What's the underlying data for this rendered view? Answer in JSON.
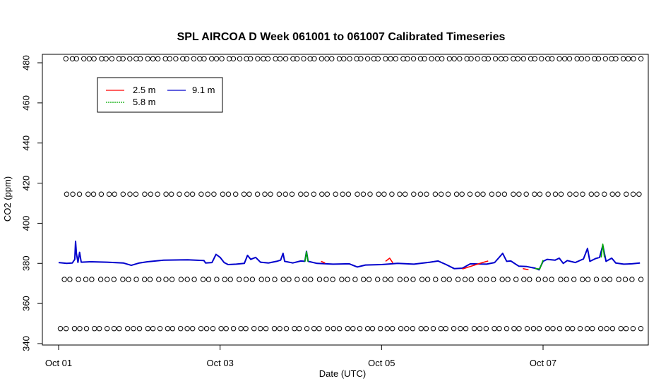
{
  "chart_data": {
    "type": "line",
    "title": "SPL AIRCOA D  Week 061001 to 061007  Calibrated Timeseries",
    "xlabel": "Date (UTC)",
    "ylabel": "CO2 (ppm)",
    "x_unit": "days",
    "xlim": [
      0.0,
      7.3
    ],
    "ylim": [
      339,
      486
    ],
    "x_tick_labels": [
      {
        "x": 0,
        "label": "Oct 01"
      },
      {
        "x": 2,
        "label": "Oct 03"
      },
      {
        "x": 4,
        "label": "Oct 05"
      },
      {
        "x": 6,
        "label": "Oct 07"
      }
    ],
    "y_ticks": [
      340,
      360,
      380,
      400,
      420,
      440,
      460,
      480
    ],
    "grid": false,
    "legend": {
      "placement": "top-left",
      "entries": [
        {
          "name": "2.5 m",
          "color": "#ff0000"
        },
        {
          "name": "5.8 m",
          "color": "#00aa00"
        },
        {
          "name": "9.1 m",
          "color": "#0000cc"
        }
      ]
    },
    "series": [
      {
        "name": "9.1 m",
        "color": "#0000cc",
        "points": [
          [
            0.0,
            380.4
          ],
          [
            0.1,
            380.0
          ],
          [
            0.17,
            380.2
          ],
          [
            0.2,
            382.0
          ],
          [
            0.21,
            391.0
          ],
          [
            0.22,
            385.0
          ],
          [
            0.24,
            380.5
          ],
          [
            0.26,
            385.5
          ],
          [
            0.28,
            380.6
          ],
          [
            0.4,
            380.8
          ],
          [
            0.6,
            380.6
          ],
          [
            0.8,
            380.2
          ],
          [
            0.9,
            379.0
          ],
          [
            1.0,
            380.2
          ],
          [
            1.1,
            380.8
          ],
          [
            1.3,
            381.6
          ],
          [
            1.6,
            381.8
          ],
          [
            1.8,
            381.4
          ],
          [
            1.82,
            380.2
          ],
          [
            1.9,
            380.4
          ],
          [
            1.95,
            384.5
          ],
          [
            2.0,
            383.0
          ],
          [
            2.05,
            380.4
          ],
          [
            2.1,
            379.4
          ],
          [
            2.2,
            379.6
          ],
          [
            2.3,
            380.0
          ],
          [
            2.34,
            384.0
          ],
          [
            2.38,
            382.0
          ],
          [
            2.44,
            383.0
          ],
          [
            2.5,
            380.6
          ],
          [
            2.6,
            380.2
          ],
          [
            2.7,
            381.0
          ],
          [
            2.75,
            381.6
          ],
          [
            2.78,
            385.0
          ],
          [
            2.8,
            381.0
          ],
          [
            2.9,
            380.2
          ],
          [
            3.0,
            381.2
          ],
          [
            3.05,
            381.0
          ],
          [
            3.07,
            386.0
          ],
          [
            3.09,
            381.0
          ],
          [
            3.2,
            380.0
          ],
          [
            3.4,
            379.6
          ],
          [
            3.6,
            379.8
          ],
          [
            3.7,
            378.2
          ],
          [
            3.8,
            379.2
          ],
          [
            4.0,
            379.4
          ],
          [
            4.2,
            380.0
          ],
          [
            4.4,
            379.6
          ],
          [
            4.6,
            380.6
          ],
          [
            4.7,
            381.2
          ],
          [
            4.8,
            379.4
          ],
          [
            4.9,
            377.4
          ],
          [
            5.0,
            377.6
          ],
          [
            5.1,
            379.8
          ],
          [
            5.3,
            379.6
          ],
          [
            5.4,
            380.4
          ],
          [
            5.5,
            385.0
          ],
          [
            5.55,
            381.0
          ],
          [
            5.6,
            381.2
          ],
          [
            5.7,
            378.6
          ],
          [
            5.8,
            378.4
          ],
          [
            5.9,
            377.6
          ],
          [
            5.95,
            376.8
          ],
          [
            6.0,
            381.0
          ],
          [
            6.05,
            382.0
          ],
          [
            6.15,
            381.6
          ],
          [
            6.2,
            382.6
          ],
          [
            6.25,
            380.0
          ],
          [
            6.3,
            381.4
          ],
          [
            6.4,
            380.4
          ],
          [
            6.5,
            382.2
          ],
          [
            6.55,
            387.4
          ],
          [
            6.58,
            381.0
          ],
          [
            6.65,
            382.4
          ],
          [
            6.7,
            383.0
          ],
          [
            6.74,
            389.0
          ],
          [
            6.78,
            381.0
          ],
          [
            6.85,
            382.6
          ],
          [
            6.9,
            380.2
          ],
          [
            7.0,
            379.6
          ],
          [
            7.1,
            379.8
          ],
          [
            7.2,
            380.2
          ]
        ]
      },
      {
        "name": "2.5 m",
        "color": "#ff0000",
        "points": [
          [
            3.25,
            381.0
          ],
          [
            3.3,
            380.2
          ],
          [
            4.05,
            381.0
          ],
          [
            4.1,
            382.6
          ],
          [
            4.14,
            380.2
          ],
          [
            5.0,
            377.2
          ],
          [
            5.25,
            380.4
          ],
          [
            5.32,
            381.2
          ],
          [
            5.75,
            377.4
          ],
          [
            5.82,
            376.8
          ]
        ]
      },
      {
        "name": "5.8 m",
        "color": "#00aa00",
        "points": [
          [
            3.05,
            380.8
          ],
          [
            3.07,
            385.8
          ],
          [
            3.09,
            380.8
          ],
          [
            5.9,
            377.4
          ],
          [
            5.96,
            377.2
          ],
          [
            6.0,
            381.6
          ],
          [
            6.72,
            383.0
          ],
          [
            6.74,
            389.6
          ],
          [
            6.76,
            383.0
          ]
        ]
      }
    ],
    "marker_rows": [
      {
        "y": 482,
        "x_start": 0.09,
        "x_end": 7.2,
        "count": 100
      },
      {
        "y": 414.5,
        "x_start": 0.09,
        "x_end": 7.2,
        "count": 82
      },
      {
        "y": 372,
        "x_start": 0.06,
        "x_end": 7.2,
        "count": 80
      },
      {
        "y": 347.5,
        "x_start": 0.02,
        "x_end": 7.2,
        "count": 88
      }
    ]
  }
}
